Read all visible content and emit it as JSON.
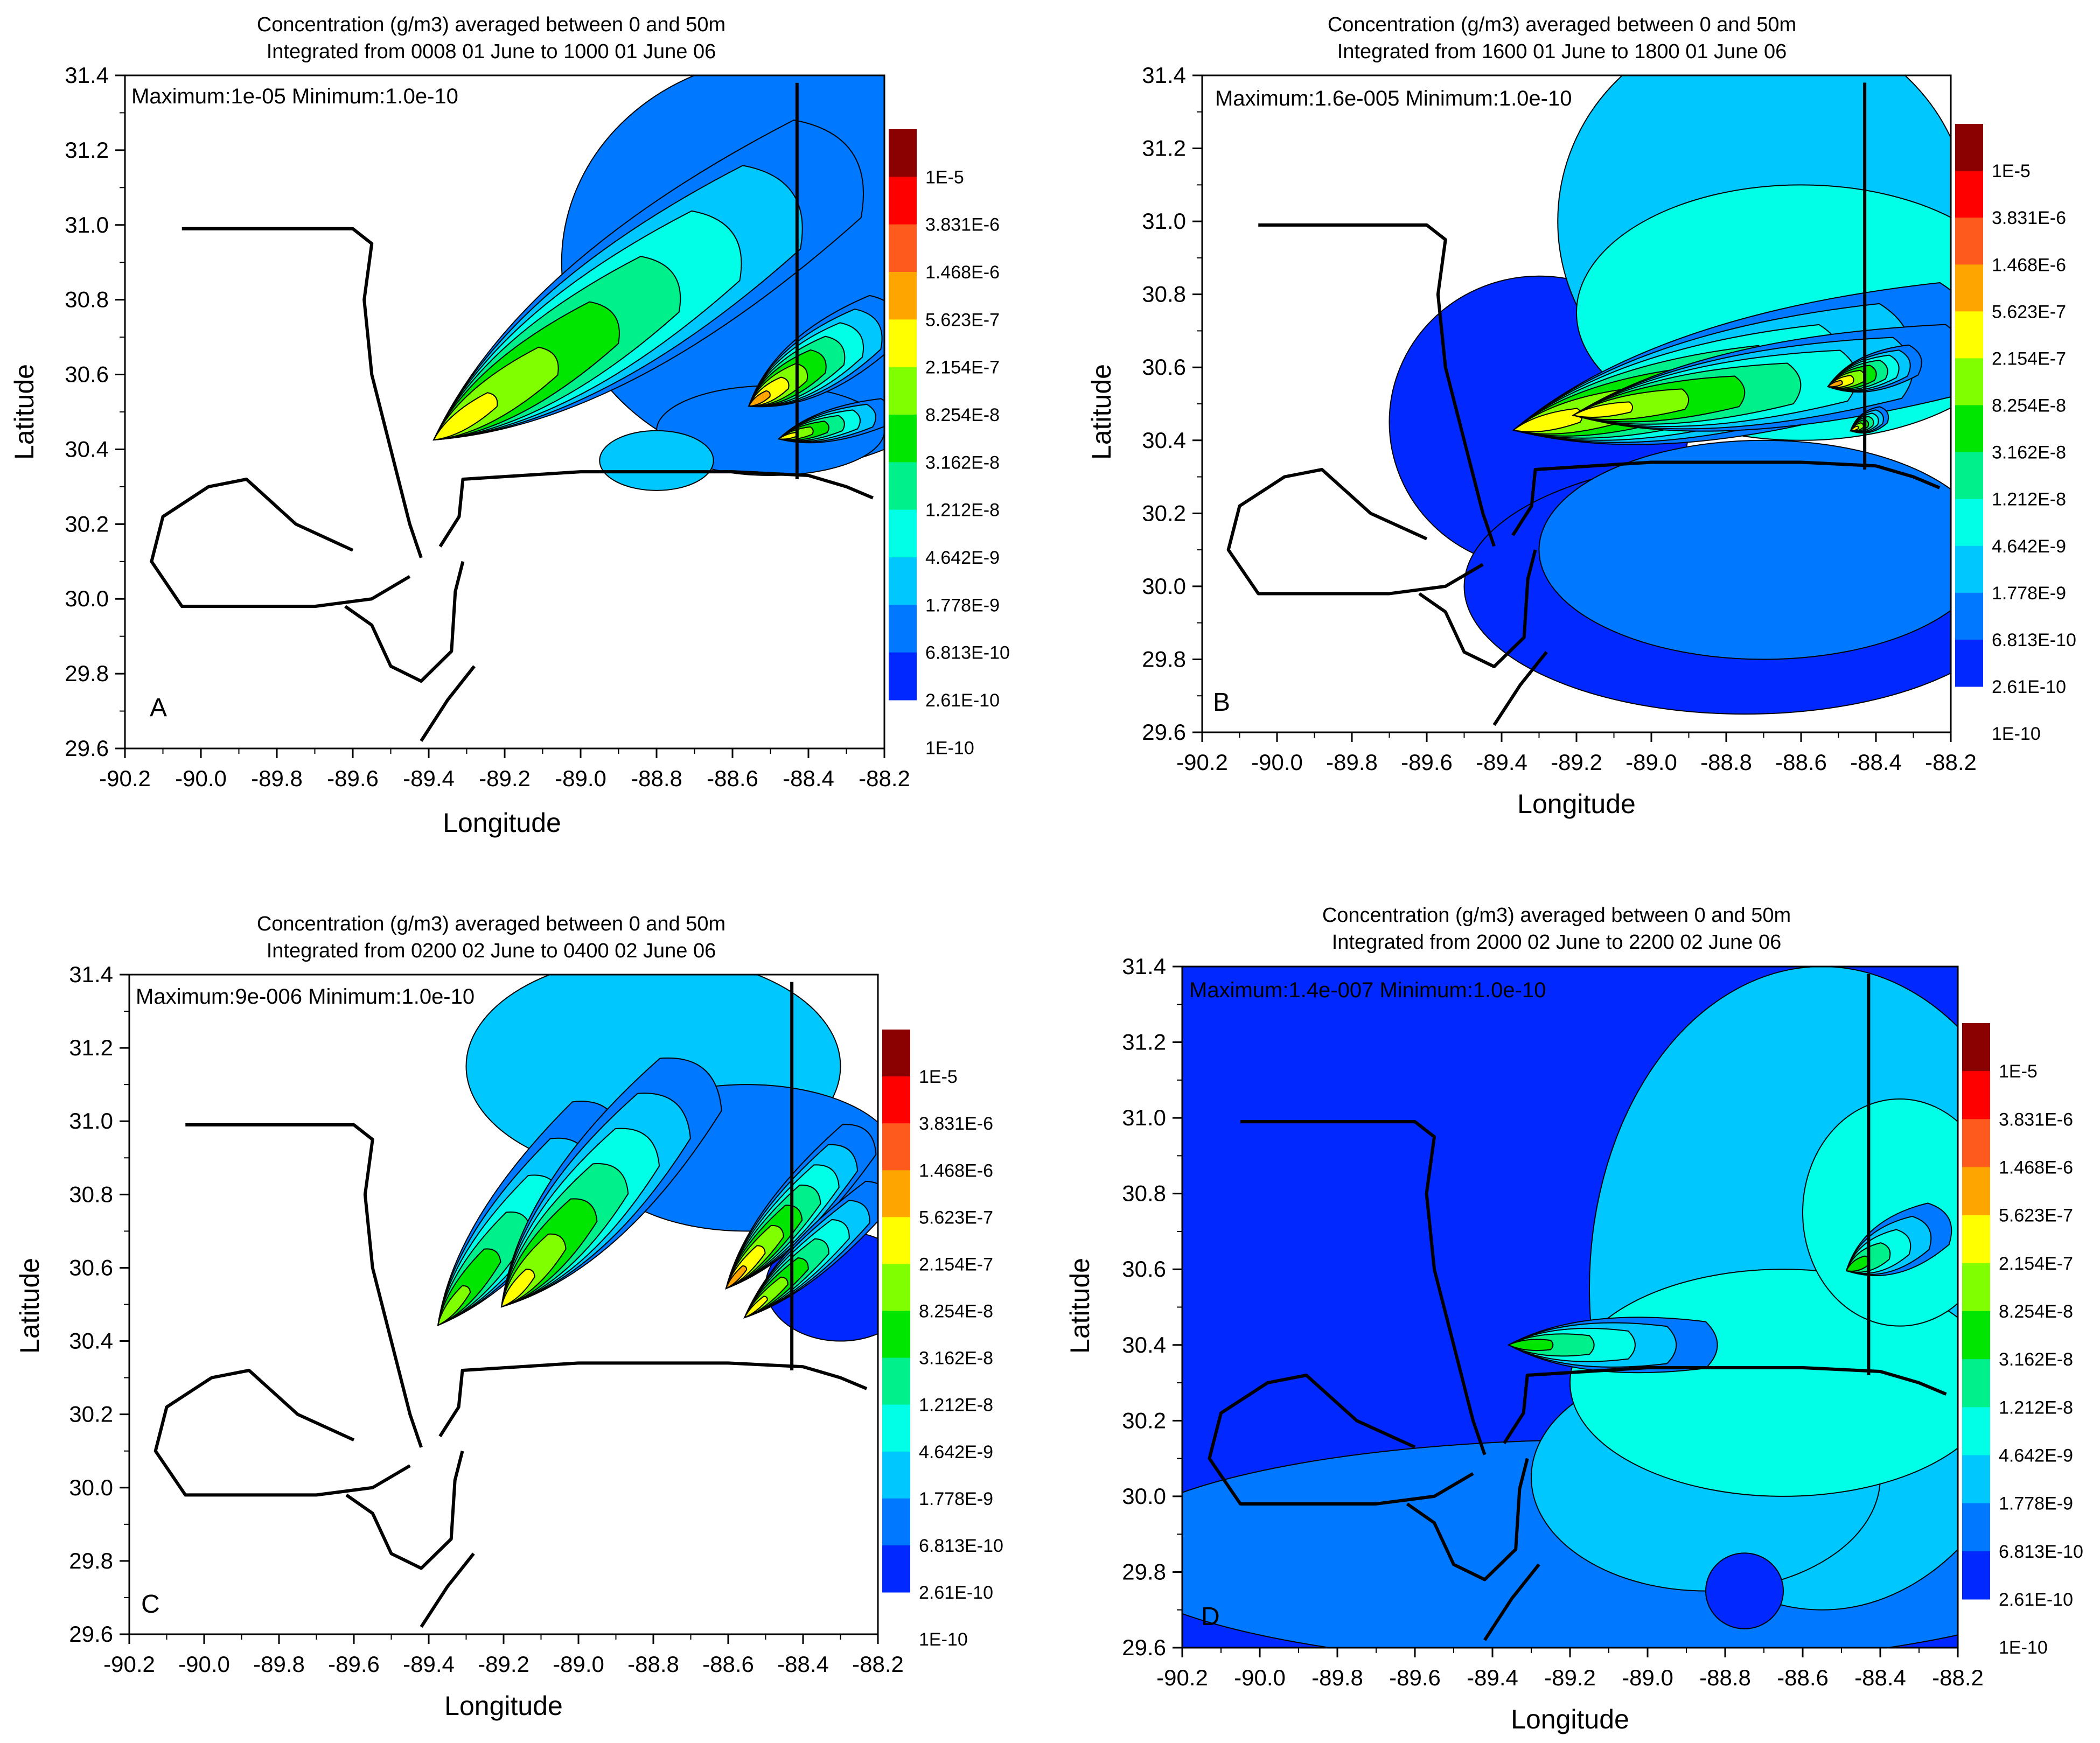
{
  "figure": {
    "title_line1": "Concentration (g/m3) averaged between 0 and 50m",
    "xlabel": "Longitude",
    "ylabel": "Latitude",
    "xticks": [
      "-90.2",
      "-90.0",
      "-89.8",
      "-89.6",
      "-89.4",
      "-89.2",
      "-89.0",
      "-88.8",
      "-88.6",
      "-88.4",
      "-88.2"
    ],
    "yticks": [
      "29.6",
      "29.8",
      "30.0",
      "30.2",
      "30.4",
      "30.6",
      "30.8",
      "31.0",
      "31.2",
      "31.4"
    ],
    "colorbar_labels": [
      "1E-5",
      "3.831E-6",
      "1.468E-6",
      "5.623E-7",
      "2.154E-7",
      "8.254E-8",
      "3.162E-8",
      "1.212E-8",
      "4.642E-9",
      "1.778E-9",
      "6.813E-10",
      "2.61E-10",
      "1E-10"
    ],
    "colorbar_colors": [
      "#8b0000",
      "#ff0000",
      "#ff5a1e",
      "#ffa500",
      "#ffff00",
      "#7fff00",
      "#00e600",
      "#00f08c",
      "#00ffe6",
      "#00c8ff",
      "#0078ff",
      "#0028ff"
    ],
    "coast_color": "#000000"
  },
  "chart_data": [
    {
      "type": "heatmap",
      "panel": "A",
      "title": "Concentration (g/m3) averaged between 0 and 50m",
      "subtitle": "Integrated from 0008 01 June to 1000 01 June 06",
      "stats": "Maximum:1e-05 Minimum:1.0e-10",
      "xlabel": "Longitude",
      "ylabel": "Latitude",
      "xlim": [
        -90.2,
        -88.2
      ],
      "ylim": [
        29.6,
        31.4
      ],
      "background_level": null,
      "plumes": [
        {
          "source": [
            -89.38,
            30.43
          ],
          "end": [
            -88.35,
            31.15
          ],
          "width": 0.26,
          "levels": 7
        },
        {
          "source": [
            -88.55,
            30.52
          ],
          "end": [
            -88.2,
            30.75
          ],
          "width": 0.12,
          "levels": 8
        },
        {
          "source": [
            -88.47,
            30.43
          ],
          "end": [
            -88.2,
            30.5
          ],
          "width": 0.06,
          "levels": 7
        }
      ],
      "blobs": [
        {
          "center": [
            -88.45,
            30.9
          ],
          "rx": 0.6,
          "ry": 0.55,
          "level": 10
        },
        {
          "center": [
            -88.5,
            30.45
          ],
          "rx": 0.3,
          "ry": 0.12,
          "level": 10
        },
        {
          "center": [
            -88.8,
            30.37
          ],
          "rx": 0.15,
          "ry": 0.08,
          "level": 9
        }
      ]
    },
    {
      "type": "heatmap",
      "panel": "B",
      "title": "Concentration (g/m3) averaged between 0 and 50m",
      "subtitle": "Integrated from 1600 01 June to 1800 01 June 06",
      "stats": "Maximum:1.6e-005 Minimum:1.0e-10",
      "xlabel": "Longitude",
      "ylabel": "Latitude",
      "xlim": [
        -90.2,
        -88.2
      ],
      "ylim": [
        29.6,
        31.4
      ],
      "background_level": null,
      "plumes": [
        {
          "source": [
            -89.36,
            30.43
          ],
          "end": [
            -88.2,
            30.7
          ],
          "width": 0.22,
          "levels": 7
        },
        {
          "source": [
            -89.2,
            30.47
          ],
          "end": [
            -88.2,
            30.62
          ],
          "width": 0.16,
          "levels": 7
        },
        {
          "source": [
            -88.52,
            30.55
          ],
          "end": [
            -88.3,
            30.62
          ],
          "width": 0.07,
          "levels": 8
        },
        {
          "source": [
            -88.46,
            30.43
          ],
          "end": [
            -88.38,
            30.47
          ],
          "width": 0.04,
          "levels": 7
        }
      ],
      "blobs": [
        {
          "center": [
            -89.3,
            30.45
          ],
          "rx": 0.4,
          "ry": 0.4,
          "level": 11
        },
        {
          "center": [
            -88.75,
            30.0
          ],
          "rx": 0.75,
          "ry": 0.35,
          "level": 11
        },
        {
          "center": [
            -88.7,
            30.1
          ],
          "rx": 0.6,
          "ry": 0.3,
          "level": 10
        },
        {
          "center": [
            -88.7,
            31.0
          ],
          "rx": 0.55,
          "ry": 0.55,
          "level": 9
        },
        {
          "center": [
            -88.6,
            30.75
          ],
          "rx": 0.6,
          "ry": 0.35,
          "level": 8
        }
      ]
    },
    {
      "type": "heatmap",
      "panel": "C",
      "title": "Concentration (g/m3) averaged between 0 and 50m",
      "subtitle": "Integrated from 0200 02 June to 0400 02 June 06",
      "stats": "Maximum:9e-006 Minimum:1.0e-10",
      "xlabel": "Longitude",
      "ylabel": "Latitude",
      "xlim": [
        -90.2,
        -88.2
      ],
      "ylim": [
        29.6,
        31.4
      ],
      "background_level": null,
      "plumes": [
        {
          "source": [
            -89.37,
            30.45
          ],
          "end": [
            -88.95,
            31.0
          ],
          "width": 0.14,
          "levels": 6
        },
        {
          "source": [
            -89.2,
            30.5
          ],
          "end": [
            -88.7,
            31.1
          ],
          "width": 0.18,
          "levels": 7
        },
        {
          "source": [
            -88.6,
            30.55
          ],
          "end": [
            -88.25,
            30.95
          ],
          "width": 0.1,
          "levels": 8
        },
        {
          "source": [
            -88.55,
            30.47
          ],
          "end": [
            -88.2,
            30.8
          ],
          "width": 0.08,
          "levels": 7
        }
      ],
      "blobs": [
        {
          "center": [
            -88.8,
            31.15
          ],
          "rx": 0.5,
          "ry": 0.3,
          "level": 9
        },
        {
          "center": [
            -88.55,
            30.9
          ],
          "rx": 0.4,
          "ry": 0.2,
          "level": 10
        },
        {
          "center": [
            -88.3,
            30.55
          ],
          "rx": 0.2,
          "ry": 0.15,
          "level": 11
        }
      ]
    },
    {
      "type": "heatmap",
      "panel": "D",
      "title": "Concentration (g/m3) averaged between 0 and 50m",
      "subtitle": "Integrated from 2000 02 June to 2200 02 June 06",
      "stats": "Maximum:1.4e-007 Minimum:1.0e-10",
      "xlabel": "Longitude",
      "ylabel": "Latitude",
      "xlim": [
        -90.2,
        -88.2
      ],
      "ylim": [
        29.6,
        31.4
      ],
      "background_level": 11,
      "plumes": [
        {
          "source": [
            -89.35,
            30.4
          ],
          "end": [
            -88.85,
            30.4
          ],
          "width": 0.1,
          "levels": 5
        },
        {
          "source": [
            -88.48,
            30.6
          ],
          "end": [
            -88.25,
            30.72
          ],
          "width": 0.1,
          "levels": 5
        }
      ],
      "blobs": [
        {
          "center": [
            -89.1,
            29.85
          ],
          "rx": 1.3,
          "ry": 0.3,
          "level": 10
        },
        {
          "center": [
            -88.55,
            30.55
          ],
          "rx": 0.6,
          "ry": 0.85,
          "level": 9
        },
        {
          "center": [
            -88.85,
            30.05
          ],
          "rx": 0.45,
          "ry": 0.3,
          "level": 9
        },
        {
          "center": [
            -88.65,
            30.3
          ],
          "rx": 0.55,
          "ry": 0.3,
          "level": 8
        },
        {
          "center": [
            -88.35,
            30.75
          ],
          "rx": 0.25,
          "ry": 0.3,
          "level": 8
        },
        {
          "center": [
            -88.75,
            29.75
          ],
          "rx": 0.1,
          "ry": 0.1,
          "level": 11
        }
      ]
    }
  ]
}
